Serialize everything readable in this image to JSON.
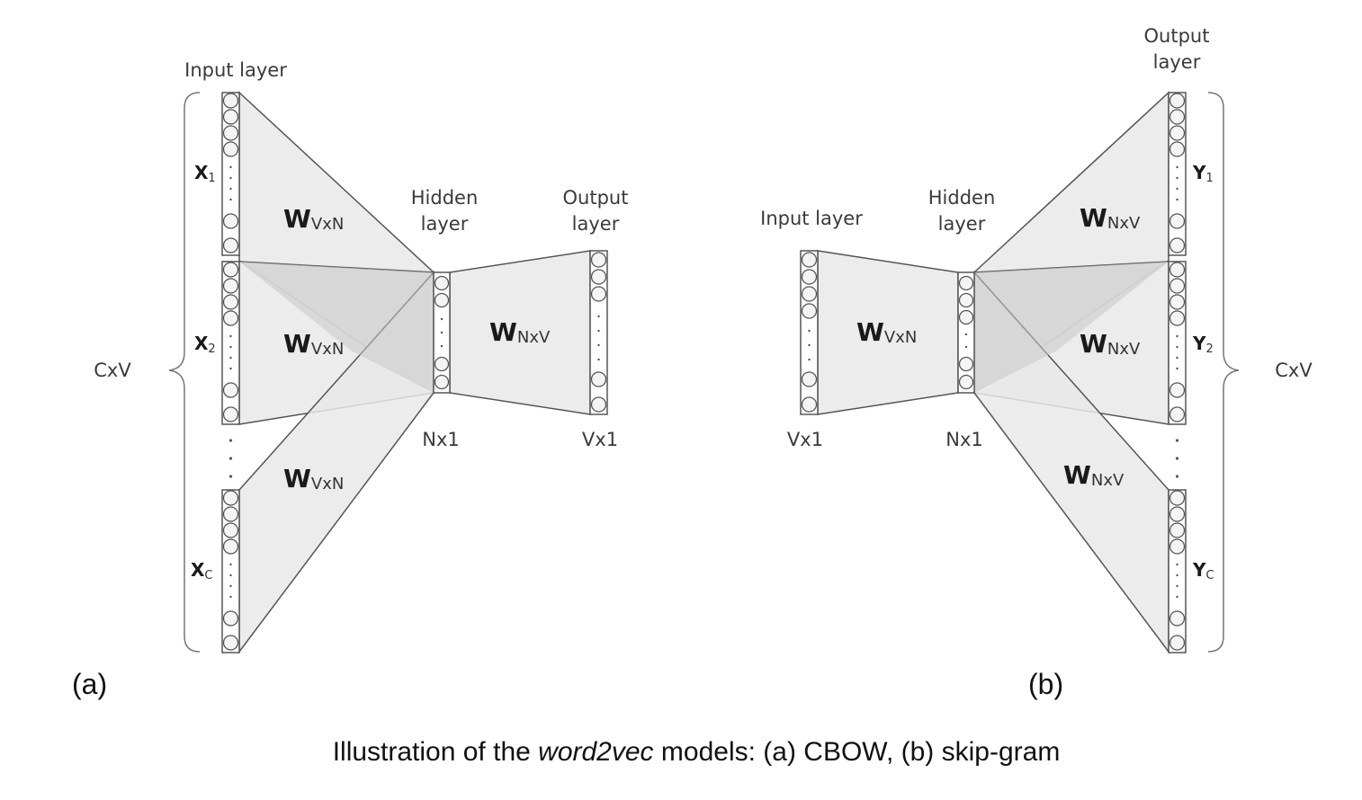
{
  "panel_a": {
    "input_layer": "Input layer",
    "hidden_layer_line1": "Hidden",
    "hidden_layer_line2": "layer",
    "output_layer_line1": "Output",
    "output_layer_line2": "layer",
    "x1_main": "X",
    "x1_sub": "1",
    "x2_main": "X",
    "x2_sub": "2",
    "xc_main": "X",
    "xc_sub": "C",
    "w1_main": "W",
    "w1_sub": "VxN",
    "w2_main": "W",
    "w2_sub": "VxN",
    "w3_main": "W",
    "w3_sub": "VxN",
    "w_out_main": "W",
    "w_out_sub": "NxV",
    "hidden_dim": "Nx1",
    "output_dim": "Vx1",
    "brace_label": "CxV",
    "tag": "(a)"
  },
  "panel_b": {
    "input_layer": "Input layer",
    "hidden_layer_line1": "Hidden",
    "hidden_layer_line2": "layer",
    "output_layer_line1": "Output",
    "output_layer_line2": "layer",
    "y1_main": "Y",
    "y1_sub": "1",
    "y2_main": "Y",
    "y2_sub": "2",
    "yc_main": "Y",
    "yc_sub": "C",
    "w_in_main": "W",
    "w_in_sub": "VxN",
    "w1_main": "W",
    "w1_sub": "NxV",
    "w2_main": "W",
    "w2_sub": "NxV",
    "w3_main": "W",
    "w3_sub": "NxV",
    "input_dim": "Vx1",
    "hidden_dim": "Nx1",
    "brace_label": "CxV",
    "tag": "(b)"
  },
  "caption": {
    "before": "Illustration of the ",
    "italic": "word2vec",
    "after": " models: (a) CBOW, (b) skip-gram"
  }
}
